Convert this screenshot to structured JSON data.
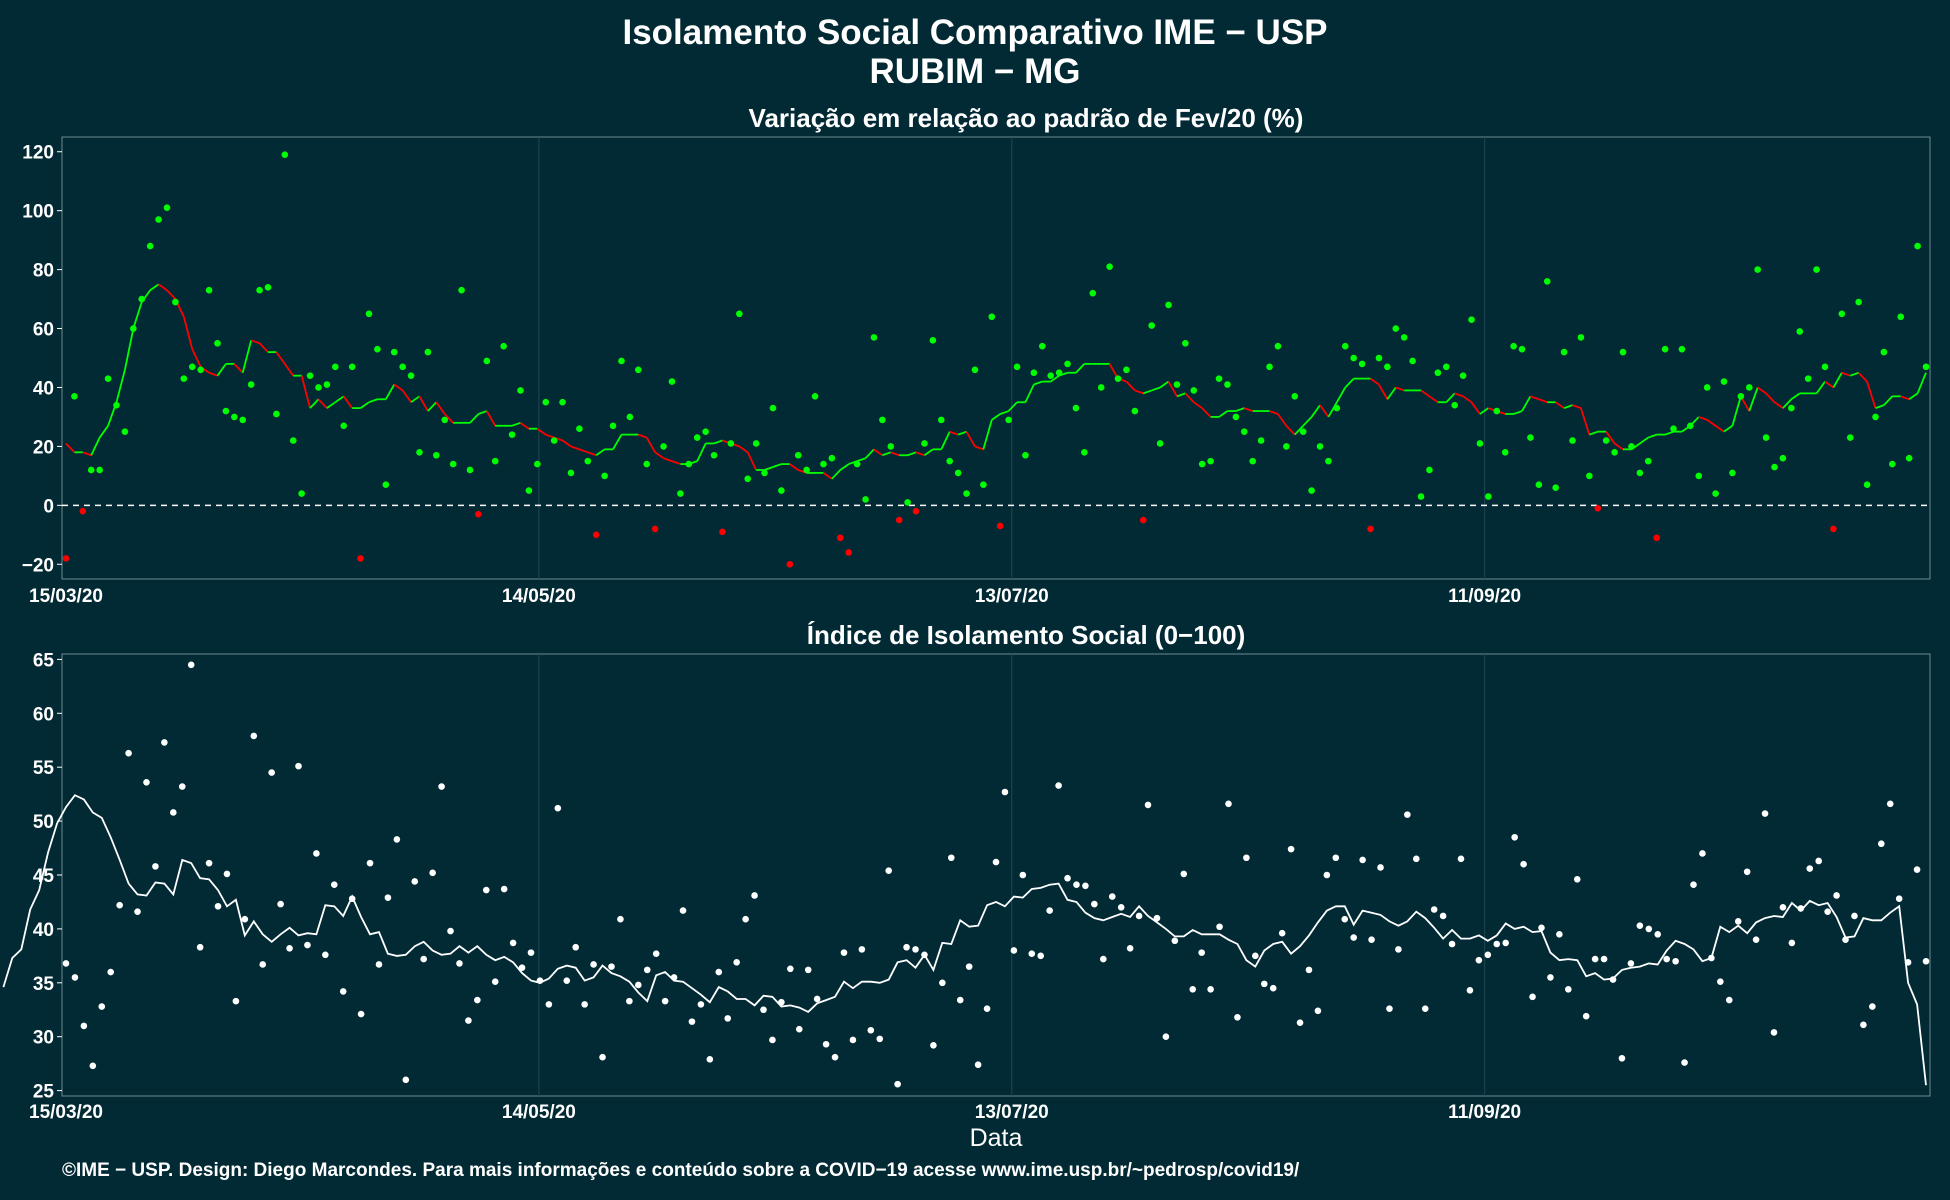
{
  "title": "Isolamento Social Comparativo IME − USP",
  "subtitle": "RUBIM − MG",
  "caption": "©IME − USP. Design: Diego Marcondes. Para mais informações e conteúdo sobre a COVID−19 acesse www.ime.usp.br/~pedrosp/covid19/",
  "colors": {
    "background": "#022a35",
    "above_zero": "#00ff00",
    "below_zero": "#ff0000",
    "index_points": "#ffffff",
    "grid": "#1f4752"
  },
  "chart_data": [
    {
      "type": "scatter",
      "title": "Variação em relação ao padrão de Fev/20 (%)",
      "xlabel": "",
      "ylabel": "",
      "x_ticks": [
        "15/03/20",
        "14/05/20",
        "13/07/20",
        "11/09/20"
      ],
      "x_range": [
        "15/03/20",
        "06/11/20"
      ],
      "ylim": [
        -25,
        125
      ],
      "y_ticks": [
        -20,
        0,
        20,
        40,
        60,
        80,
        100,
        120
      ],
      "reference_line": 0,
      "series": [
        {
          "kind": "points",
          "values": [
            -18,
            37,
            -2,
            12,
            12,
            43,
            34,
            25,
            60,
            70,
            88,
            97,
            101,
            69,
            43,
            47,
            46,
            73,
            55,
            32,
            30,
            29,
            41,
            73,
            74,
            31,
            119,
            22,
            4,
            44,
            40,
            41,
            47,
            27,
            47,
            -18,
            65,
            53,
            7,
            52,
            47,
            44,
            18,
            52,
            17,
            29,
            14,
            73,
            12,
            -3,
            49,
            15,
            54,
            24,
            39,
            5,
            14,
            35,
            22,
            35,
            11,
            26,
            15,
            -10,
            10,
            27,
            49,
            30,
            46,
            14,
            -8,
            20,
            42,
            4,
            14,
            23,
            25,
            17,
            -9,
            21,
            65,
            9,
            21,
            11,
            33,
            5,
            -20,
            17,
            12,
            37,
            14,
            16,
            -11,
            -16,
            14,
            2,
            57,
            29,
            20,
            -5,
            1,
            -2,
            21,
            56,
            29,
            15,
            11,
            4,
            46,
            7,
            64,
            -7,
            29,
            47,
            17,
            45,
            54,
            44,
            45,
            48,
            33,
            18,
            72,
            40,
            81,
            43,
            46,
            32,
            -5,
            61,
            21,
            68,
            41,
            55,
            39,
            14,
            15,
            43,
            41,
            30,
            25,
            15,
            22,
            47,
            54,
            20,
            37,
            25,
            5,
            20,
            15,
            33,
            54,
            50,
            48,
            -8,
            50,
            47,
            60,
            57,
            49,
            3,
            12,
            45,
            47,
            34,
            44,
            63,
            21,
            3,
            32,
            18,
            54,
            53,
            23,
            7,
            76,
            6,
            52,
            22,
            57,
            10,
            -1,
            22,
            18,
            52,
            20,
            11,
            15,
            -11,
            53,
            26,
            53,
            27,
            10,
            40,
            4,
            42,
            11,
            37,
            40,
            80,
            23,
            13,
            16,
            33,
            59,
            43,
            80,
            47,
            -8,
            65,
            23,
            69,
            7,
            30,
            52,
            14,
            64,
            16,
            88,
            47
          ]
        },
        {
          "kind": "moving_average",
          "values": [
            21,
            18,
            18,
            17,
            23,
            27,
            35,
            46,
            60,
            69,
            73,
            75,
            73,
            70,
            64,
            53,
            47,
            45,
            44,
            48,
            48,
            45,
            56,
            55,
            52,
            52,
            48,
            44,
            44,
            33,
            36,
            33,
            35,
            37,
            33,
            33,
            35,
            36,
            36,
            41,
            39,
            35,
            37,
            32,
            35,
            31,
            28,
            28,
            28,
            31,
            32,
            27,
            27,
            27,
            28,
            26,
            26,
            24,
            23,
            22,
            20,
            19,
            18,
            17,
            19,
            19,
            24,
            24,
            24,
            23,
            18,
            16,
            15,
            14,
            14,
            15,
            21,
            21,
            22,
            21,
            20,
            18,
            12,
            12,
            13,
            14,
            14,
            12,
            11,
            11,
            11,
            9,
            12,
            14,
            15,
            16,
            19,
            17,
            18,
            17,
            17,
            18,
            17,
            19,
            19,
            25,
            24,
            25,
            20,
            19,
            29,
            31,
            32,
            35,
            35,
            41,
            42,
            42,
            44,
            45,
            45,
            48,
            48,
            48,
            48,
            43,
            42,
            39,
            38,
            39,
            40,
            42,
            37,
            38,
            35,
            33,
            30,
            30,
            32,
            32,
            33,
            32,
            32,
            32,
            31,
            27,
            24,
            27,
            30,
            34,
            30,
            35,
            40,
            43,
            43,
            43,
            41,
            36,
            40,
            39,
            39,
            39,
            37,
            35,
            35,
            38,
            37,
            35,
            31,
            33,
            32,
            31,
            31,
            32,
            37,
            36,
            35,
            35,
            33,
            34,
            33,
            24,
            25,
            25,
            21,
            19,
            19,
            21,
            23,
            24,
            24,
            25,
            25,
            27,
            30,
            29,
            27,
            25,
            27,
            37,
            32,
            40,
            38,
            35,
            33,
            36,
            38,
            38,
            38,
            42,
            40,
            45,
            44,
            45,
            42,
            33,
            34,
            37,
            37,
            36,
            38,
            45
          ]
        }
      ]
    },
    {
      "type": "scatter",
      "title": "Índice de Isolamento Social (0−100)",
      "xlabel": "Data",
      "ylabel": "",
      "x_ticks": [
        "15/03/20",
        "14/05/20",
        "13/07/20",
        "11/09/20"
      ],
      "x_range": [
        "15/03/20",
        "06/11/20"
      ],
      "ylim": [
        24.5,
        65.5
      ],
      "y_ticks": [
        25,
        30,
        35,
        40,
        45,
        50,
        55,
        60,
        65
      ],
      "series": [
        {
          "kind": "points",
          "values": [
            36.8,
            35.5,
            31,
            27.3,
            32.8,
            36,
            42.2,
            56.3,
            41.6,
            53.6,
            45.8,
            57.3,
            50.8,
            53.2,
            64.5,
            38.3,
            46.1,
            42.1,
            45.1,
            33.3,
            40.9,
            57.9,
            36.7,
            54.5,
            42.3,
            38.2,
            55.1,
            38.5,
            47,
            37.6,
            44.1,
            34.2,
            42.8,
            32.1,
            46.1,
            36.7,
            42.9,
            48.3,
            26,
            44.4,
            37.2,
            45.2,
            53.2,
            39.8,
            36.8,
            31.5,
            33.4,
            43.6,
            35.1,
            43.7,
            38.7,
            36.4,
            37.8,
            35.2,
            33,
            51.2,
            35.2,
            38.3,
            33,
            36.7,
            28.1,
            36.5,
            40.9,
            33.3,
            34.8,
            36.2,
            37.7,
            33.3,
            35.5,
            41.7,
            31.4,
            33,
            27.9,
            36,
            31.7,
            36.9,
            40.9,
            43.1,
            32.5,
            29.7,
            33.2,
            36.3,
            30.7,
            36.2,
            33.5,
            29.3,
            28.1,
            37.8,
            29.7,
            38.1,
            30.6,
            29.8,
            45.4,
            25.6,
            38.3,
            38.1,
            37.6,
            29.2,
            35,
            46.6,
            33.4,
            36.5,
            27.4,
            32.6,
            46.2,
            52.7,
            38,
            45,
            37.7,
            37.5,
            41.7,
            53.3,
            44.7,
            44.1,
            44,
            42.3,
            37.2,
            43,
            42,
            38.2,
            41.2,
            51.5,
            41,
            30,
            38.9,
            45.1,
            34.4,
            37.8,
            34.4,
            40.2,
            51.6,
            31.8,
            46.6,
            37.5,
            34.9,
            34.5,
            39.6,
            47.4,
            31.3,
            36.2,
            32.4,
            45,
            46.6,
            40.9,
            39.2,
            46.4,
            39,
            45.7,
            32.6,
            38.1,
            50.6,
            46.5,
            32.6,
            41.8,
            41.2,
            38.6,
            46.5,
            34.3,
            37.1,
            37.6,
            38.6,
            38.7,
            48.5,
            46,
            33.7,
            40.1,
            35.5,
            39.5,
            34.4,
            44.6,
            31.9,
            37.2,
            37.2,
            35.3,
            28,
            36.8,
            40.3,
            40,
            39.5,
            37.2,
            37,
            27.6,
            44.1,
            47,
            37.3,
            35.1,
            33.4,
            40.7,
            45.3,
            39,
            50.7,
            30.4,
            42,
            38.7,
            41.9,
            45.6,
            46.3,
            41.6,
            43.1,
            39,
            41.2,
            31.1,
            32.8,
            47.9,
            51.6,
            42.8,
            36.9,
            45.5,
            37
          ]
        },
        {
          "kind": "moving_average",
          "values": [
            34.6,
            37.3,
            38.1,
            41.8,
            43.6,
            47.1,
            49.8,
            51.3,
            52.4,
            52,
            50.8,
            50.3,
            48.5,
            46.4,
            44.2,
            43.2,
            43.1,
            44.3,
            44.2,
            43.2,
            46.4,
            46.1,
            44.7,
            44.6,
            43.6,
            42.1,
            42.7,
            39.4,
            40.7,
            39.5,
            38.8,
            39.5,
            40.1,
            39.4,
            39.6,
            39.5,
            42.2,
            42.1,
            41.2,
            43,
            41.1,
            39.5,
            39.7,
            37.7,
            37.5,
            37.6,
            38.4,
            38.8,
            38,
            37.6,
            37.7,
            38.4,
            37.8,
            38.4,
            37.6,
            37.1,
            37.4,
            36.9,
            35.9,
            35.2,
            35,
            35.4,
            36.3,
            36.6,
            36.4,
            35.2,
            35.5,
            36.6,
            35.9,
            35.6,
            35.1,
            34.1,
            33.3,
            35.7,
            36,
            35.2,
            35.1,
            34.5,
            33.9,
            33.2,
            34.6,
            34.2,
            33.5,
            33.5,
            32.9,
            33.8,
            33.7,
            32.8,
            32.9,
            32.7,
            32.3,
            33.1,
            33.4,
            33.7,
            35.1,
            34.5,
            35.1,
            35.1,
            35,
            35.3,
            36.9,
            37.1,
            36.4,
            37.6,
            36.2,
            38.7,
            38.6,
            40.8,
            40.2,
            40.3,
            42.2,
            42.5,
            42.1,
            43,
            42.9,
            43.7,
            43.8,
            44.1,
            44.2,
            42.7,
            42.5,
            41.5,
            41,
            40.8,
            41.1,
            41.4,
            41.1,
            42.1,
            41.2,
            40.6,
            40,
            39.3,
            39.3,
            39.9,
            39.5,
            39.5,
            39.5,
            39,
            38.6,
            37.1,
            36.5,
            38,
            38.6,
            38.8,
            37.7,
            38.4,
            39.4,
            40.6,
            41.7,
            42.1,
            42.1,
            40.4,
            41.7,
            41.5,
            41.3,
            40.7,
            40.3,
            40.7,
            41.6,
            41,
            40.1,
            39.1,
            39.9,
            39.1,
            39.1,
            39.4,
            38.9,
            39.4,
            40.5,
            40,
            40.2,
            39.7,
            39.8,
            37.8,
            37.1,
            37.2,
            37.1,
            35.6,
            35.9,
            35.3,
            35.4,
            36.2,
            36.4,
            36.5,
            36.8,
            36.7,
            38,
            38.9,
            38.6,
            38.1,
            37,
            37.3,
            40.2,
            39.7,
            40.3,
            39.6,
            40.6,
            41,
            41.2,
            41.1,
            42.4,
            41.7,
            42.6,
            42.2,
            42.4,
            41.1,
            39.2,
            39.3,
            41,
            40.8,
            40.8,
            41.5,
            42.1,
            35,
            33,
            25.5
          ]
        }
      ]
    }
  ]
}
